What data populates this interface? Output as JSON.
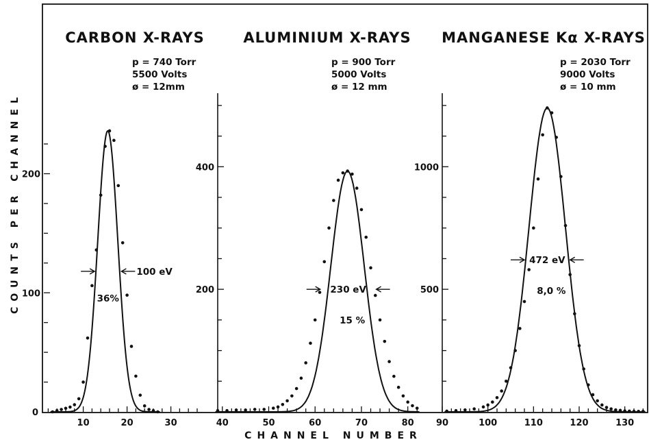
{
  "ylabel": "COUNTS PER CHANNEL",
  "xlabel": "CHANNEL NUMBER",
  "chart_data": [
    {
      "type": "line",
      "title": "CARBON X-RAYS",
      "conditions": [
        "p = 740 Torr",
        "5500 Volts",
        "ø = 12mm"
      ],
      "xlim": [
        1,
        36
      ],
      "ylim": [
        0,
        240
      ],
      "xticks": [
        10,
        20,
        30
      ],
      "yticks": [
        100,
        200
      ],
      "peak": {
        "mu": 15.6,
        "height": 236,
        "sigma": 2.3
      },
      "points": {
        "x": [
          3,
          4,
          5,
          6,
          7,
          8,
          9,
          10,
          11,
          12,
          13,
          14,
          15,
          16,
          17,
          18,
          19,
          20,
          21,
          22,
          23,
          24,
          25,
          26,
          27
        ],
        "y": [
          0,
          1,
          2,
          3,
          4,
          6,
          11,
          25,
          62,
          106,
          136,
          182,
          223,
          236,
          228,
          190,
          142,
          98,
          55,
          30,
          14,
          5,
          2,
          1,
          0
        ]
      },
      "fwhm_label": "100 eV",
      "fwhm_y": 118,
      "fwhm_x": [
        12.9,
        18.4
      ],
      "resolution_label": "36%"
    },
    {
      "type": "line",
      "title": "ALUMINIUM X-RAYS",
      "conditions": [
        "p = 900 Torr",
        "5000 Volts",
        "ø = 12 mm"
      ],
      "xlim": [
        39,
        83
      ],
      "ylim": [
        0,
        520
      ],
      "xticks": [
        40,
        50,
        60,
        70,
        80
      ],
      "yticks": [
        200,
        400
      ],
      "peak": {
        "mu": 67,
        "height": 393,
        "sigma": 3.6
      },
      "points": {
        "x": [
          39,
          41,
          43,
          45,
          47,
          49,
          51,
          52,
          53,
          54,
          55,
          56,
          57,
          58,
          59,
          60,
          61,
          62,
          63,
          64,
          65,
          66,
          67,
          68,
          69,
          70,
          71,
          72,
          73,
          74,
          75,
          76,
          77,
          78,
          79,
          80,
          81,
          82
        ],
        "y": [
          2,
          2,
          3,
          3,
          4,
          4,
          6,
          8,
          12,
          18,
          26,
          38,
          55,
          80,
          112,
          150,
          195,
          245,
          300,
          345,
          378,
          390,
          393,
          388,
          365,
          330,
          285,
          235,
          190,
          150,
          115,
          82,
          58,
          40,
          26,
          16,
          10,
          6
        ]
      },
      "fwhm_label": "230 eV",
      "fwhm_y": 200,
      "fwhm_x": [
        61.4,
        72.9
      ],
      "resolution_label": "15 %"
    },
    {
      "type": "line",
      "title": "MANGANESE Kα X-RAYS",
      "conditions": [
        "p = 2030 Torr",
        "9000 Volts",
        "ø = 10 mm"
      ],
      "xlim": [
        90,
        135
      ],
      "ylim": [
        0,
        1300
      ],
      "xticks": [
        90,
        100,
        110,
        120,
        130
      ],
      "yticks": [
        500,
        1000
      ],
      "peak": {
        "mu": 113,
        "height": 1240,
        "sigma": 4.0
      },
      "points": {
        "x": [
          91,
          93,
          95,
          97,
          99,
          100,
          101,
          102,
          103,
          104,
          105,
          106,
          107,
          108,
          109,
          110,
          111,
          112,
          113,
          114,
          115,
          116,
          117,
          118,
          119,
          120,
          121,
          122,
          123,
          124,
          125,
          126,
          127,
          128,
          129,
          130,
          131,
          132,
          133,
          134
        ],
        "y": [
          3,
          5,
          8,
          12,
          20,
          28,
          40,
          58,
          85,
          125,
          180,
          250,
          340,
          450,
          580,
          750,
          950,
          1130,
          1240,
          1220,
          1120,
          960,
          760,
          560,
          400,
          270,
          175,
          110,
          70,
          45,
          28,
          18,
          12,
          8,
          6,
          4,
          3,
          2,
          2,
          2
        ]
      },
      "fwhm_label": "472 eV",
      "fwhm_y": 620,
      "fwhm_x": [
        108.3,
        117.7
      ],
      "resolution_label": "8,0 %"
    }
  ]
}
